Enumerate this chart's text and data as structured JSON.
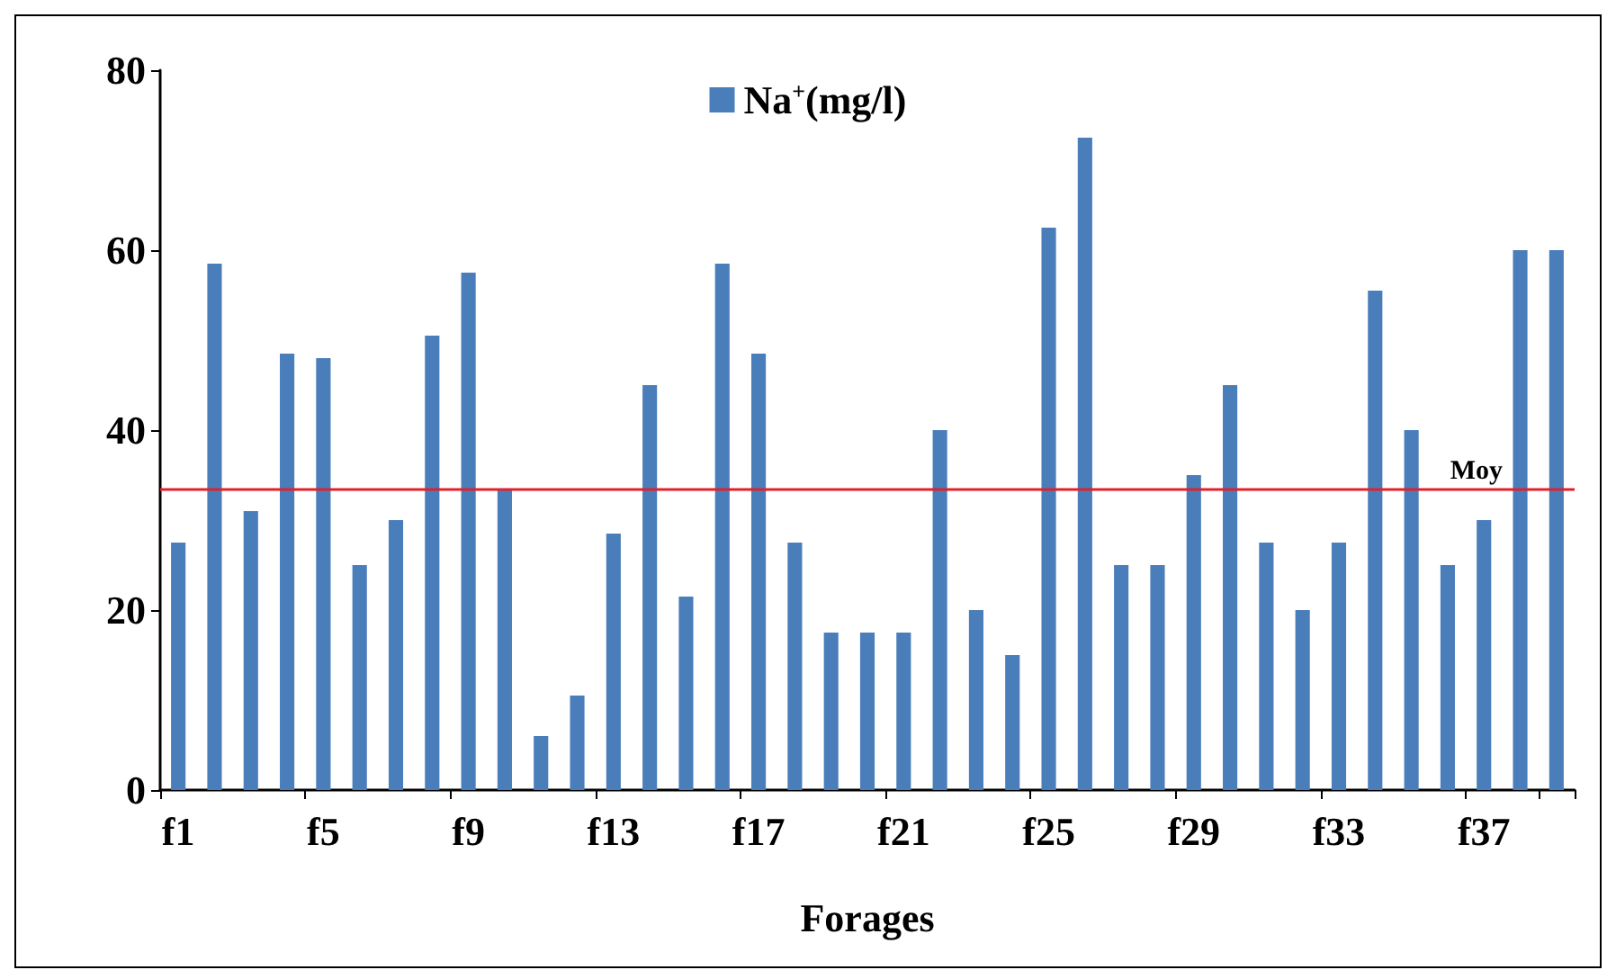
{
  "chart_data": {
    "type": "bar",
    "xlabel": "Forages",
    "categories": [
      "f1",
      null,
      null,
      null,
      "f5",
      null,
      null,
      null,
      "f9",
      null,
      null,
      null,
      "f13",
      null,
      null,
      null,
      "f17",
      null,
      null,
      null,
      "f21",
      null,
      null,
      null,
      "f25",
      null,
      null,
      null,
      "f29",
      null,
      null,
      null,
      "f33",
      null,
      null,
      null,
      "f37",
      null,
      null
    ],
    "series": [
      {
        "name": "Na$^{+}$(mg/l)",
        "color": "#4a7ebb",
        "values": [
          27.5,
          58.5,
          31,
          48.5,
          48,
          25,
          30,
          50.5,
          57.5,
          33.5,
          6,
          10.5,
          28.5,
          45,
          21.5,
          58.5,
          48.5,
          27.5,
          17.5,
          17.5,
          17.5,
          40,
          20,
          15,
          62.5,
          72.5,
          25,
          25,
          35,
          45,
          27.5,
          20,
          27.5,
          55.5,
          40,
          25,
          30,
          60,
          60
        ]
      }
    ],
    "ylim": [
      0,
      80
    ],
    "yticks": [
      0,
      20,
      40,
      60,
      80
    ],
    "grid": false,
    "legend": "top",
    "ref_lines": [
      {
        "axis": "y",
        "value": 33.5,
        "label": "Moy",
        "color": "#e0202a"
      }
    ]
  }
}
